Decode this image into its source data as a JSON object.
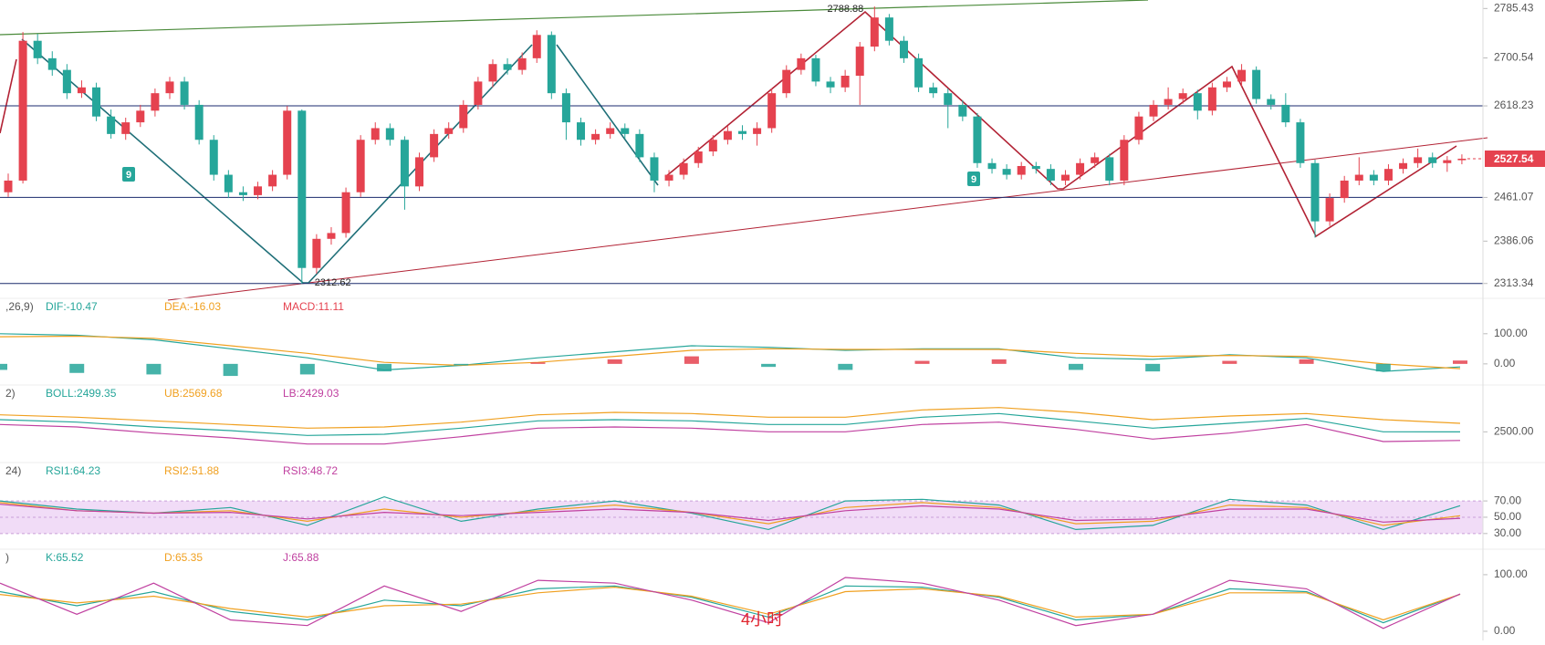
{
  "chart_data": [
    {
      "type": "candlestick",
      "up_color": "#e5424f",
      "down_color": "#26a69a",
      "ylim": [
        2291,
        2800
      ],
      "yticks": [
        2785.43,
        2700.54,
        2618.23,
        2461.07,
        2386.06,
        2313.34
      ],
      "levels": [
        2618.23,
        2461.07,
        2313.34
      ],
      "last_price": 2527.54,
      "high_label": 2788.88,
      "low_label": 2312.62,
      "markers": [
        "9",
        "9"
      ],
      "candles": [
        [
          2470,
          2502,
          2462,
          2490
        ],
        [
          2490,
          2745,
          2485,
          2730
        ],
        [
          2730,
          2742,
          2690,
          2700
        ],
        [
          2700,
          2712,
          2670,
          2680
        ],
        [
          2680,
          2690,
          2630,
          2640
        ],
        [
          2640,
          2662,
          2632,
          2650
        ],
        [
          2650,
          2658,
          2592,
          2600
        ],
        [
          2600,
          2612,
          2562,
          2570
        ],
        [
          2570,
          2598,
          2560,
          2590
        ],
        [
          2590,
          2620,
          2582,
          2610
        ],
        [
          2610,
          2648,
          2600,
          2640
        ],
        [
          2640,
          2668,
          2630,
          2660
        ],
        [
          2660,
          2668,
          2612,
          2620
        ],
        [
          2620,
          2628,
          2552,
          2560
        ],
        [
          2560,
          2568,
          2490,
          2500
        ],
        [
          2500,
          2508,
          2460,
          2470
        ],
        [
          2470,
          2480,
          2455,
          2465
        ],
        [
          2465,
          2488,
          2458,
          2480
        ],
        [
          2480,
          2508,
          2472,
          2500
        ],
        [
          2500,
          2618,
          2492,
          2610
        ],
        [
          2610,
          2612,
          2312.62,
          2340
        ],
        [
          2340,
          2398,
          2330,
          2390
        ],
        [
          2390,
          2410,
          2380,
          2400
        ],
        [
          2400,
          2478,
          2392,
          2470
        ],
        [
          2470,
          2568,
          2462,
          2560
        ],
        [
          2560,
          2590,
          2552,
          2580
        ],
        [
          2580,
          2588,
          2550,
          2560
        ],
        [
          2560,
          2566,
          2440,
          2480
        ],
        [
          2480,
          2538,
          2472,
          2530
        ],
        [
          2530,
          2578,
          2522,
          2570
        ],
        [
          2570,
          2590,
          2562,
          2580
        ],
        [
          2580,
          2628,
          2572,
          2620
        ],
        [
          2620,
          2668,
          2612,
          2660
        ],
        [
          2660,
          2698,
          2650,
          2690
        ],
        [
          2690,
          2700,
          2672,
          2680
        ],
        [
          2680,
          2710,
          2672,
          2700
        ],
        [
          2700,
          2748,
          2692,
          2740
        ],
        [
          2740,
          2746,
          2630,
          2640
        ],
        [
          2640,
          2648,
          2560,
          2590
        ],
        [
          2590,
          2598,
          2550,
          2560
        ],
        [
          2560,
          2578,
          2552,
          2570
        ],
        [
          2570,
          2590,
          2562,
          2580
        ],
        [
          2580,
          2588,
          2562,
          2570
        ],
        [
          2570,
          2578,
          2522,
          2530
        ],
        [
          2530,
          2538,
          2470,
          2490
        ],
        [
          2490,
          2508,
          2480,
          2500
        ],
        [
          2500,
          2528,
          2492,
          2520
        ],
        [
          2520,
          2548,
          2512,
          2540
        ],
        [
          2540,
          2568,
          2532,
          2560
        ],
        [
          2560,
          2584,
          2552,
          2575
        ],
        [
          2575,
          2585,
          2560,
          2570
        ],
        [
          2570,
          2590,
          2550,
          2580
        ],
        [
          2580,
          2648,
          2572,
          2640
        ],
        [
          2640,
          2688,
          2632,
          2680
        ],
        [
          2680,
          2708,
          2672,
          2700
        ],
        [
          2700,
          2706,
          2652,
          2660
        ],
        [
          2660,
          2668,
          2640,
          2650
        ],
        [
          2650,
          2680,
          2642,
          2670
        ],
        [
          2670,
          2728,
          2620,
          2720
        ],
        [
          2720,
          2788.88,
          2712,
          2770
        ],
        [
          2770,
          2776,
          2722,
          2730
        ],
        [
          2730,
          2738,
          2692,
          2700
        ],
        [
          2700,
          2708,
          2642,
          2650
        ],
        [
          2650,
          2658,
          2632,
          2640
        ],
        [
          2640,
          2648,
          2580,
          2620
        ],
        [
          2620,
          2628,
          2592,
          2600
        ],
        [
          2600,
          2606,
          2512,
          2520
        ],
        [
          2520,
          2528,
          2502,
          2510
        ],
        [
          2510,
          2518,
          2492,
          2500
        ],
        [
          2500,
          2522,
          2492,
          2515
        ],
        [
          2515,
          2522,
          2502,
          2510
        ],
        [
          2510,
          2518,
          2482,
          2490
        ],
        [
          2490,
          2508,
          2482,
          2500
        ],
        [
          2500,
          2528,
          2492,
          2520
        ],
        [
          2520,
          2538,
          2512,
          2530
        ],
        [
          2530,
          2536,
          2482,
          2490
        ],
        [
          2490,
          2568,
          2482,
          2560
        ],
        [
          2560,
          2608,
          2552,
          2600
        ],
        [
          2600,
          2628,
          2592,
          2620
        ],
        [
          2620,
          2650,
          2612,
          2630
        ],
        [
          2630,
          2648,
          2622,
          2640
        ],
        [
          2640,
          2646,
          2595,
          2610
        ],
        [
          2610,
          2658,
          2602,
          2650
        ],
        [
          2650,
          2668,
          2642,
          2660
        ],
        [
          2660,
          2690,
          2652,
          2680
        ],
        [
          2680,
          2686,
          2622,
          2630
        ],
        [
          2630,
          2638,
          2612,
          2620
        ],
        [
          2620,
          2640,
          2582,
          2590
        ],
        [
          2590,
          2596,
          2512,
          2520
        ],
        [
          2520,
          2526,
          2392,
          2420
        ],
        [
          2420,
          2468,
          2412,
          2460
        ],
        [
          2460,
          2498,
          2452,
          2490
        ],
        [
          2490,
          2530,
          2482,
          2500
        ],
        [
          2500,
          2508,
          2482,
          2490
        ],
        [
          2490,
          2518,
          2482,
          2510
        ],
        [
          2510,
          2528,
          2502,
          2520
        ],
        [
          2520,
          2545,
          2512,
          2530
        ],
        [
          2530,
          2538,
          2512,
          2520
        ],
        [
          2520,
          2532,
          2505,
          2525
        ],
        [
          2525,
          2535,
          2518,
          2527.54
        ]
      ]
    },
    {
      "type": "line",
      "prefix": ",26,9)",
      "ylim": [
        -64,
        163
      ],
      "yticks": [
        {
          "value": 100,
          "label": "100.00"
        },
        {
          "value": 0,
          "label": "0.00"
        }
      ],
      "series": [
        {
          "name": "DIF:-10.47",
          "color": "#26a69a",
          "values": [
            100,
            95,
            80,
            50,
            20,
            -20,
            -5,
            20,
            40,
            60,
            55,
            45,
            50,
            50,
            20,
            15,
            30,
            20,
            -25,
            -10
          ]
        },
        {
          "name": "DEA:-16.03",
          "color": "#f0a020",
          "values": [
            90,
            92,
            85,
            60,
            35,
            5,
            -5,
            5,
            25,
            45,
            50,
            48,
            48,
            48,
            35,
            25,
            28,
            25,
            0,
            -16
          ]
        },
        {
          "name": "MACD:11.11",
          "color": "#e5424f",
          "style": "bar",
          "values": [
            -20,
            -30,
            -35,
            -40,
            -35,
            -25,
            -5,
            5,
            15,
            25,
            -10,
            -20,
            10,
            15,
            -20,
            -25,
            10,
            15,
            -25,
            11.11
          ]
        }
      ]
    },
    {
      "type": "line",
      "prefix": "2)",
      "ylim": [
        2300,
        2750
      ],
      "yticks": [
        {
          "value": 2500,
          "label": "2500.00"
        }
      ],
      "series": [
        {
          "name": "BOLL:2499.35",
          "color": "#26a69a",
          "values": [
            2600,
            2580,
            2540,
            2510,
            2470,
            2480,
            2530,
            2590,
            2600,
            2590,
            2560,
            2560,
            2620,
            2650,
            2590,
            2530,
            2570,
            2610,
            2500,
            2499.35
          ]
        },
        {
          "name": "UB:2569.68",
          "color": "#f0a020",
          "values": [
            2640,
            2620,
            2590,
            2560,
            2530,
            2540,
            2580,
            2640,
            2660,
            2650,
            2620,
            2620,
            2680,
            2700,
            2660,
            2600,
            2630,
            2650,
            2600,
            2569.68
          ]
        },
        {
          "name": "LB:2429.03",
          "color": "#c040a0",
          "values": [
            2560,
            2540,
            2490,
            2450,
            2400,
            2400,
            2460,
            2530,
            2540,
            2530,
            2500,
            2500,
            2560,
            2580,
            2520,
            2440,
            2490,
            2560,
            2420,
            2429.03
          ]
        }
      ]
    },
    {
      "type": "line",
      "prefix": "24)",
      "ylim": [
        13,
        97
      ],
      "band": [
        30,
        70
      ],
      "yticks": [
        {
          "value": 70,
          "label": "70.00"
        },
        {
          "value": 50,
          "label": "50.00"
        },
        {
          "value": 30,
          "label": "30.00"
        }
      ],
      "series": [
        {
          "name": "RSI1:64.23",
          "color": "#26a69a",
          "values": [
            70,
            60,
            55,
            62,
            40,
            75,
            45,
            60,
            70,
            55,
            35,
            70,
            72,
            65,
            35,
            40,
            72,
            65,
            35,
            64.23
          ]
        },
        {
          "name": "RSI2:51.88",
          "color": "#f0a020",
          "values": [
            68,
            58,
            55,
            58,
            45,
            60,
            50,
            58,
            65,
            56,
            42,
            62,
            68,
            62,
            42,
            45,
            65,
            62,
            40,
            51.88
          ]
        },
        {
          "name": "RSI3:48.72",
          "color": "#c040a0",
          "values": [
            66,
            58,
            55,
            56,
            48,
            56,
            52,
            56,
            60,
            56,
            46,
            58,
            64,
            60,
            46,
            48,
            60,
            60,
            44,
            48.72
          ]
        }
      ]
    },
    {
      "type": "line",
      "prefix": ")",
      "ylim": [
        -13,
        116
      ],
      "note": "4小时",
      "yticks": [
        {
          "value": 100,
          "label": "100.00"
        },
        {
          "value": 0,
          "label": "0.00"
        }
      ],
      "series": [
        {
          "name": "K:65.52",
          "color": "#26a69a",
          "values": [
            70,
            45,
            70,
            35,
            20,
            55,
            45,
            75,
            80,
            60,
            25,
            80,
            78,
            60,
            20,
            30,
            75,
            70,
            15,
            65.52
          ]
        },
        {
          "name": "D:65.35",
          "color": "#f0a020",
          "values": [
            65,
            50,
            62,
            40,
            25,
            45,
            48,
            68,
            78,
            62,
            30,
            70,
            75,
            62,
            25,
            30,
            68,
            68,
            20,
            65.35
          ]
        },
        {
          "name": "J:65.88",
          "color": "#c040a0",
          "values": [
            85,
            30,
            85,
            20,
            10,
            80,
            35,
            90,
            85,
            55,
            15,
            95,
            85,
            55,
            10,
            30,
            90,
            75,
            5,
            65.88
          ]
        }
      ]
    }
  ]
}
